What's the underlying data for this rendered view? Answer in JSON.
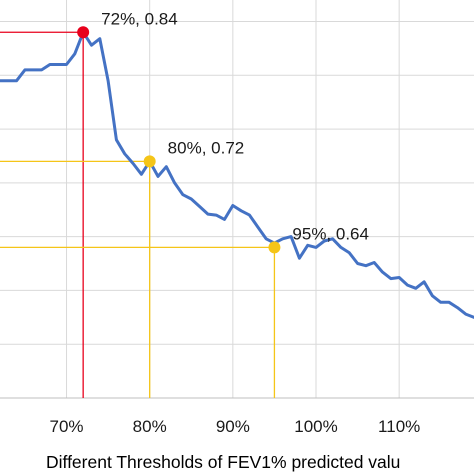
{
  "chart_data": {
    "type": "line",
    "xlabel": "Different Thresholds of FEV1% predicted valu",
    "xlim": [
      62,
      119
    ],
    "ylim": [
      0.5,
      0.87
    ],
    "x_ticks": [
      70,
      80,
      90,
      100,
      110
    ],
    "x_tick_labels": [
      "70%",
      "80%",
      "90%",
      "100%",
      "110%"
    ],
    "y_gridlines": [
      0.55,
      0.6,
      0.65,
      0.7,
      0.75,
      0.8,
      0.85
    ],
    "grid": true,
    "series": [
      {
        "color": "#4472c4",
        "x": [
          62,
          63,
          64,
          65,
          66,
          67,
          68,
          69,
          70,
          71,
          72,
          73,
          74,
          75,
          76,
          77,
          78,
          79,
          80,
          81,
          82,
          83,
          84,
          85,
          86,
          87,
          88,
          89,
          90,
          91,
          92,
          93,
          94,
          95,
          96,
          97,
          98,
          99,
          100,
          101,
          102,
          103,
          104,
          105,
          106,
          107,
          108,
          109,
          110,
          111,
          112,
          113,
          114,
          115,
          116,
          117,
          118,
          119
        ],
        "y": [
          0.795,
          0.795,
          0.795,
          0.805,
          0.805,
          0.805,
          0.81,
          0.81,
          0.81,
          0.82,
          0.84,
          0.828,
          0.834,
          0.795,
          0.74,
          0.727,
          0.718,
          0.708,
          0.72,
          0.706,
          0.715,
          0.7,
          0.689,
          0.685,
          0.678,
          0.671,
          0.67,
          0.666,
          0.679,
          0.674,
          0.67,
          0.659,
          0.648,
          0.644,
          0.648,
          0.65,
          0.63,
          0.642,
          0.64,
          0.646,
          0.648,
          0.64,
          0.635,
          0.625,
          0.623,
          0.626,
          0.617,
          0.611,
          0.612,
          0.605,
          0.602,
          0.608,
          0.595,
          0.589,
          0.589,
          0.584,
          0.578,
          0.575
        ]
      }
    ],
    "highlights": [
      {
        "x": 72,
        "y": 0.84,
        "label": "72%, 0.84",
        "color": "#e8001c"
      },
      {
        "x": 80,
        "y": 0.72,
        "label": "80%, 0.72",
        "color": "#f5c518"
      },
      {
        "x": 95,
        "y": 0.64,
        "label": "95%, 0.64",
        "color": "#f5c518"
      }
    ]
  }
}
